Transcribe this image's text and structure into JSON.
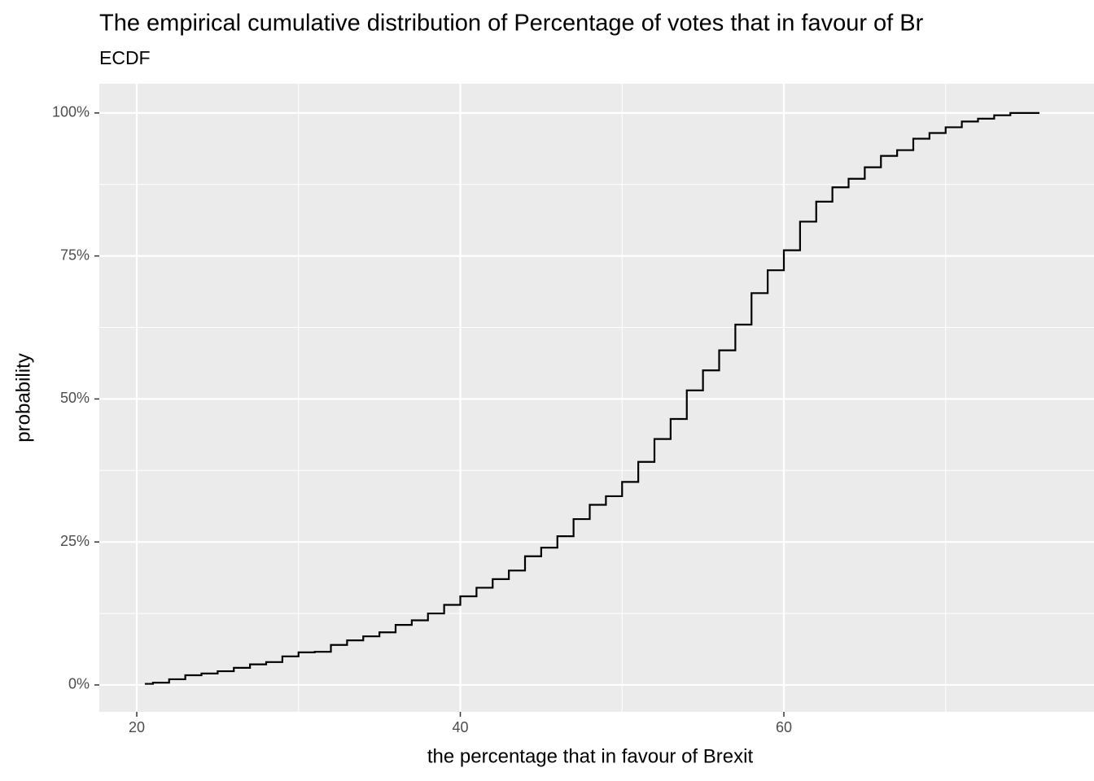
{
  "chart_data": {
    "type": "ecdf",
    "title": "The empirical cumulative distribution of Percentage of votes that in favour of Br",
    "subtitle": "ECDF",
    "x_label": "the percentage that in favour of Brexit",
    "y_label": "probability",
    "xlim": [
      17.685,
      79.17
    ],
    "ylim": [
      -0.047,
      1.051
    ],
    "xticks": [
      20,
      40,
      60
    ],
    "yticks": [
      {
        "value": 0,
        "label": "0%"
      },
      {
        "value": 0.25,
        "label": "25%"
      },
      {
        "value": 0.5,
        "label": "50%"
      },
      {
        "value": 0.75,
        "label": "75%"
      },
      {
        "value": 1,
        "label": "100%"
      }
    ],
    "grid": true,
    "color": "#000000",
    "x": [
      20.5,
      21,
      22,
      23,
      24,
      25,
      26,
      27,
      28,
      29,
      30,
      31,
      32,
      33,
      34,
      35,
      36,
      37,
      38,
      39,
      40,
      41,
      42,
      43,
      44,
      45,
      46,
      47,
      48,
      49,
      50,
      51,
      52,
      53,
      54,
      55,
      56,
      57,
      58,
      59,
      60,
      61,
      62,
      63,
      64,
      65,
      66,
      67,
      68,
      69,
      70,
      71,
      72,
      73,
      74,
      75.8
    ],
    "values": [
      0.002,
      0.004,
      0.01,
      0.017,
      0.02,
      0.024,
      0.03,
      0.036,
      0.04,
      0.05,
      0.057,
      0.058,
      0.07,
      0.078,
      0.085,
      0.092,
      0.105,
      0.113,
      0.125,
      0.14,
      0.155,
      0.17,
      0.185,
      0.2,
      0.225,
      0.24,
      0.26,
      0.29,
      0.315,
      0.33,
      0.355,
      0.39,
      0.43,
      0.465,
      0.515,
      0.55,
      0.585,
      0.63,
      0.685,
      0.725,
      0.76,
      0.81,
      0.845,
      0.87,
      0.885,
      0.905,
      0.925,
      0.935,
      0.955,
      0.965,
      0.975,
      0.985,
      0.99,
      0.996,
      1.0,
      1.0
    ]
  }
}
